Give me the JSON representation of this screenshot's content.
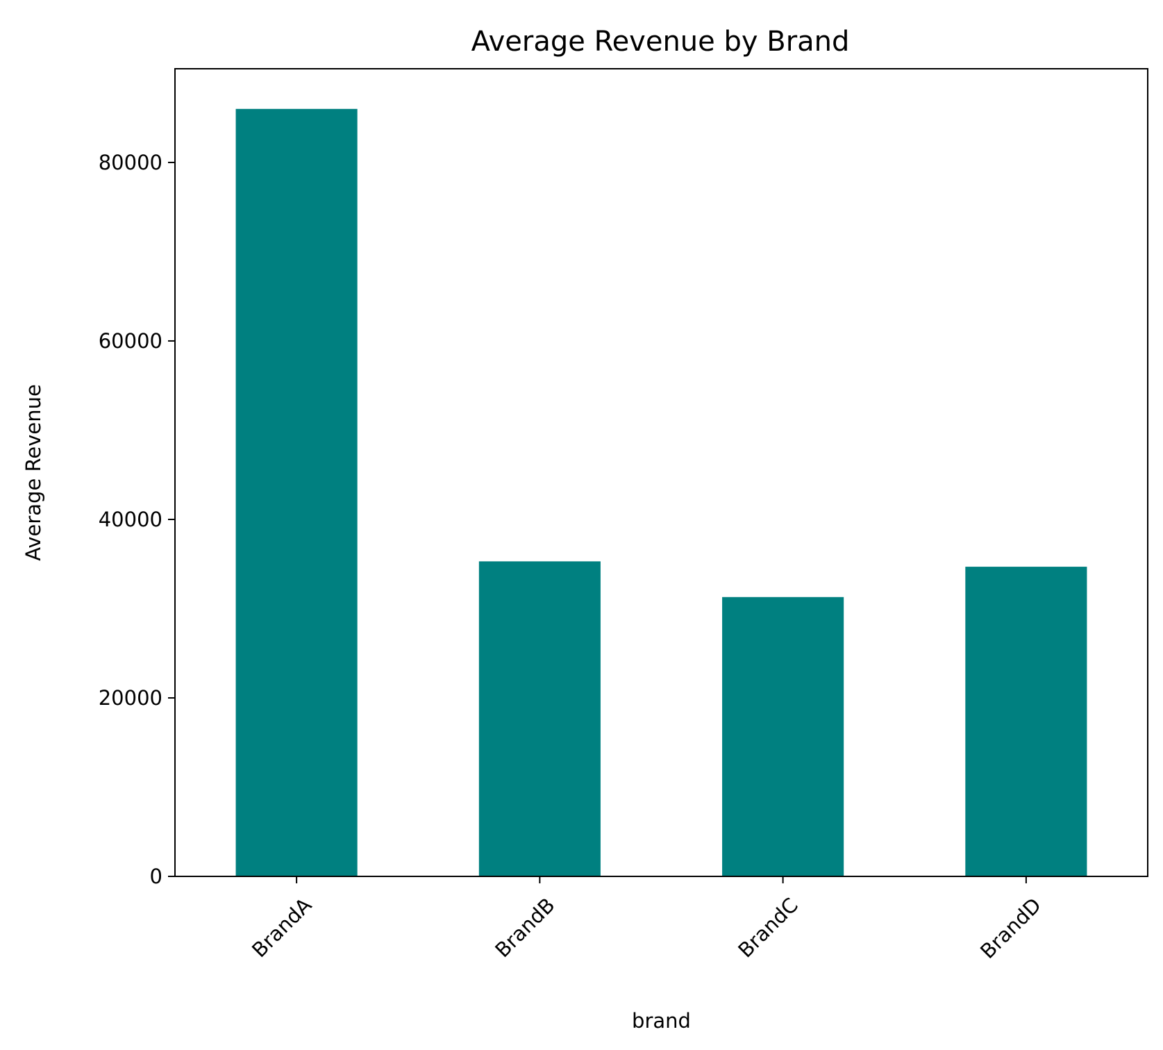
{
  "chart_data": {
    "type": "bar",
    "title": "Average Revenue by Brand",
    "xlabel": "brand",
    "ylabel": "Average Revenue",
    "categories": [
      "BrandA",
      "BrandB",
      "BrandC",
      "BrandD"
    ],
    "values": [
      86000,
      35300,
      31300,
      34700
    ],
    "ylim": [
      0,
      90500
    ],
    "yticks": [
      0,
      20000,
      40000,
      60000,
      80000
    ],
    "ytick_labels": [
      "0",
      "20000",
      "40000",
      "60000",
      "80000"
    ],
    "xtick_rotation_deg": 45,
    "bar_color": "#008080",
    "grid": false,
    "legend": "none"
  }
}
